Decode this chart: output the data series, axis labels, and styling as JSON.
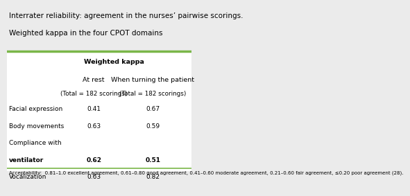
{
  "title_line1": "Interrater reliability: agreement in the nurses’ pairwise scorings.",
  "title_line2": "Weighted kappa in the four CPOT domains",
  "header_col": "Weighted kappa",
  "col1_header1": "At rest",
  "col1_header2": "(Total = 182 scorings)",
  "col2_header1": "When turning the patient",
  "col2_header2": "(Total = 182 scorings)",
  "row_labels_full": [
    "Facial expression",
    "Body movements",
    "Compliance with",
    "ventilator",
    "Vocalization"
  ],
  "col1_values": [
    "0.41",
    "0.63",
    "",
    "0.62",
    "0.63"
  ],
  "col2_values": [
    "0.67",
    "0.59",
    "",
    "0.51",
    "0.82"
  ],
  "col1_bold": [
    false,
    false,
    false,
    true,
    false
  ],
  "col2_bold": [
    false,
    false,
    false,
    true,
    false
  ],
  "footnote": "Acceptability:  0.81–1.0 excellent agreement, 0.61–0.80 good agreement, 0.41–0.60 moderate agreement, 0.21–0.60 fair agreement, ≤0.20 poor agreement (28).",
  "bg_color": "#ebebeb",
  "table_bg": "#ffffff",
  "header_line_color": "#7ab648",
  "font_size_title": 7.5,
  "font_size_header": 6.8,
  "font_size_body": 6.5,
  "font_size_footnote": 5.0
}
